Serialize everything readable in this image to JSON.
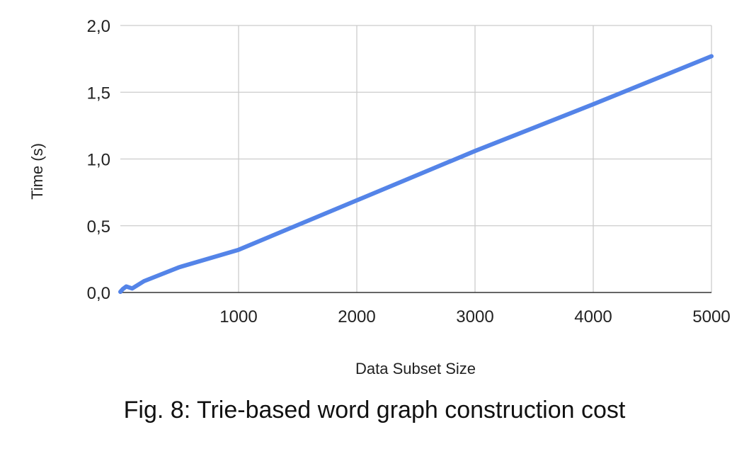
{
  "chart_data": {
    "type": "line",
    "xlabel": "Data Subset Size",
    "ylabel": "Time (s)",
    "xlim": [
      0,
      5000
    ],
    "ylim": [
      0,
      2.0
    ],
    "xticks": [
      {
        "value": 1000,
        "label": "1000"
      },
      {
        "value": 2000,
        "label": "2000"
      },
      {
        "value": 3000,
        "label": "3000"
      },
      {
        "value": 4000,
        "label": "4000"
      },
      {
        "value": 5000,
        "label": "5000"
      }
    ],
    "yticks": [
      {
        "value": 0.0,
        "label": "0,0"
      },
      {
        "value": 0.5,
        "label": "0,5"
      },
      {
        "value": 1.0,
        "label": "1,0"
      },
      {
        "value": 1.5,
        "label": "1,5"
      },
      {
        "value": 2.0,
        "label": "2,0"
      }
    ],
    "grid": true,
    "series": [
      {
        "color": "#5484e8",
        "x": [
          0,
          20,
          50,
          100,
          200,
          500,
          1000,
          2000,
          3000,
          4000,
          5000
        ],
        "y": [
          0.005,
          0.025,
          0.045,
          0.03,
          0.085,
          0.19,
          0.32,
          0.69,
          1.06,
          1.41,
          1.77
        ]
      }
    ]
  },
  "caption": "Fig. 8: Trie-based word graph construction cost"
}
